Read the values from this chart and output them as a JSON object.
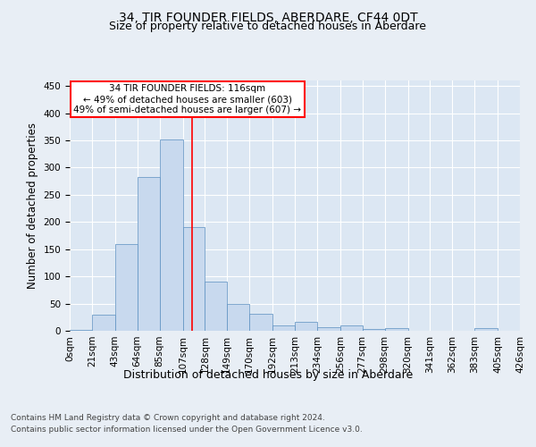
{
  "title": "34, TIR FOUNDER FIELDS, ABERDARE, CF44 0DT",
  "subtitle": "Size of property relative to detached houses in Aberdare",
  "xlabel": "Distribution of detached houses by size in Aberdare",
  "ylabel": "Number of detached properties",
  "footer_line1": "Contains HM Land Registry data © Crown copyright and database right 2024.",
  "footer_line2": "Contains public sector information licensed under the Open Government Licence v3.0.",
  "annotation_line1": "34 TIR FOUNDER FIELDS: 116sqm",
  "annotation_line2": "← 49% of detached houses are smaller (603)",
  "annotation_line3": "49% of semi-detached houses are larger (607) →",
  "bar_color": "#c8d9ee",
  "bar_edge_color": "#5a8fc0",
  "red_line_x": 116,
  "bin_edges": [
    0,
    21,
    43,
    64,
    85,
    107,
    128,
    149,
    170,
    192,
    213,
    234,
    256,
    277,
    298,
    320,
    341,
    362,
    383,
    405,
    426
  ],
  "bar_heights": [
    2,
    30,
    160,
    283,
    351,
    191,
    90,
    49,
    31,
    10,
    16,
    7,
    10,
    4,
    5,
    0,
    0,
    0,
    5,
    0
  ],
  "ylim": [
    0,
    460
  ],
  "yticks": [
    0,
    50,
    100,
    150,
    200,
    250,
    300,
    350,
    400,
    450
  ],
  "background_color": "#e8eef5",
  "plot_bg_color": "#dce7f3",
  "grid_color": "#ffffff",
  "title_fontsize": 10,
  "subtitle_fontsize": 9,
  "tick_labelsize": 7.5,
  "xlabel_fontsize": 9,
  "ylabel_fontsize": 8.5
}
